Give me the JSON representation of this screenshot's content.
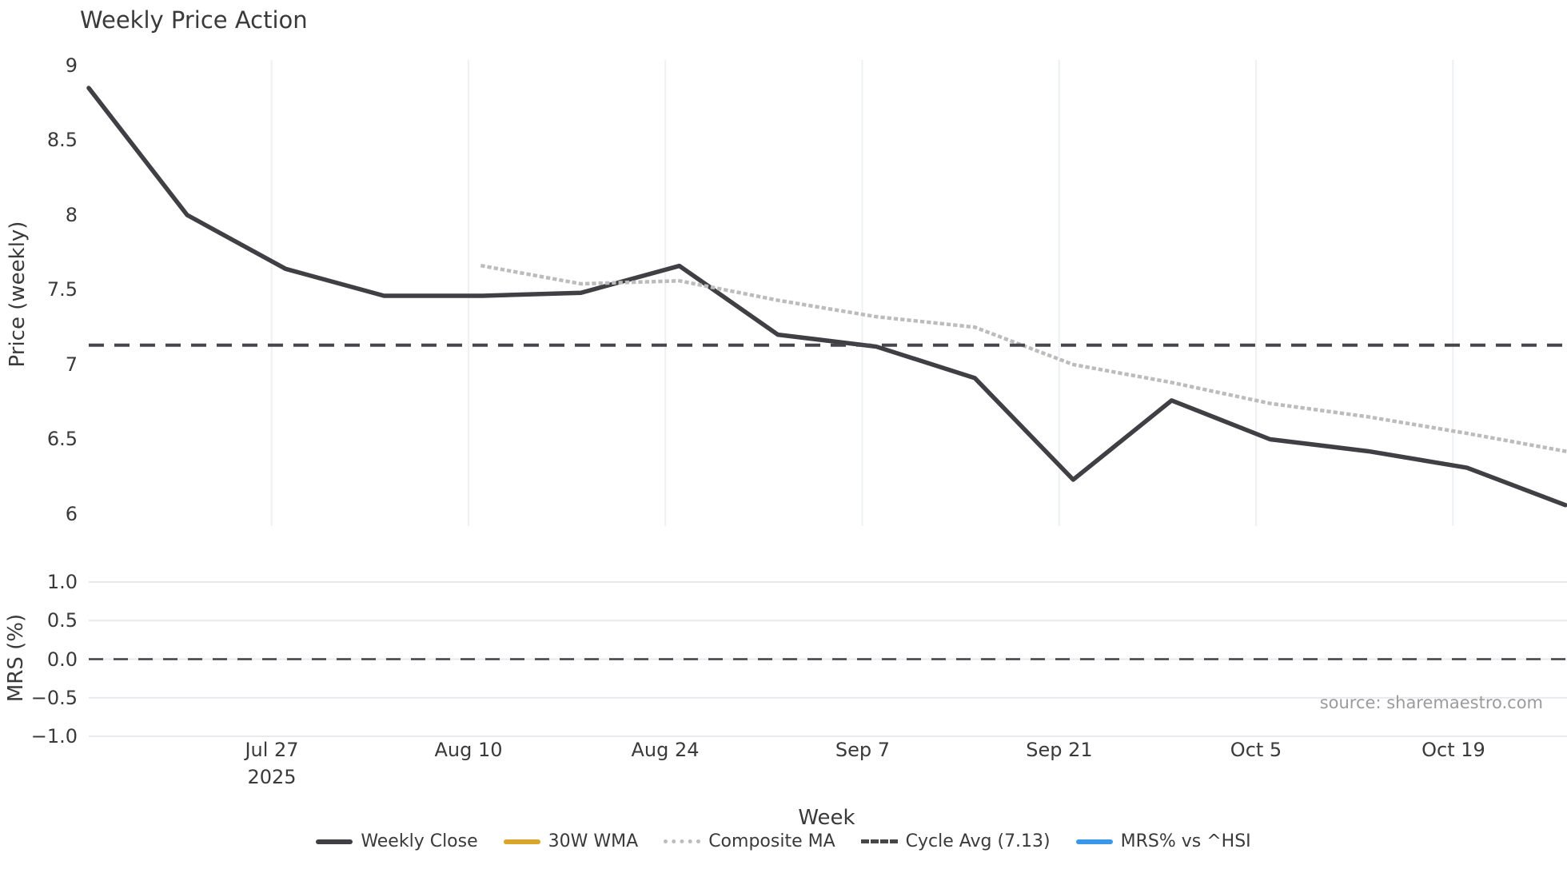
{
  "title": "Weekly Price Action",
  "source_note": "source: sharemaestro.com",
  "chart_data": {
    "type": "line",
    "title": "Weekly Price Action",
    "xlabel": "Week",
    "x_year_label": "2025",
    "x_ticks": [
      "Jul 27",
      "Aug 10",
      "Aug 24",
      "Sep 7",
      "Sep 21",
      "Oct 5",
      "Oct 19"
    ],
    "weeks": [
      "Jul 14",
      "Jul 21",
      "Jul 28",
      "Aug 4",
      "Aug 11",
      "Aug 18",
      "Aug 25",
      "Sep 1",
      "Sep 8",
      "Sep 15",
      "Sep 22",
      "Sep 29",
      "Oct 6",
      "Oct 13",
      "Oct 20",
      "Oct 27"
    ],
    "colors": {
      "weekly_close": "#3f3f44",
      "wma_30w": "#d9a62b",
      "composite_ma": "#bcbcbc",
      "cycle_avg": "#46464b",
      "mrs": "#3b97e8",
      "grid_vertical": "#eef0f3",
      "grid_horizontal": "#e7e9ec",
      "background": "#ffffff"
    },
    "price_panel": {
      "ylabel": "Price (weekly)",
      "ytick_labels": [
        "9",
        "8.5",
        "8",
        "7.5",
        "7",
        "6.5",
        "6"
      ],
      "ytick_values": [
        9,
        8.5,
        8,
        7.5,
        7,
        6.5,
        6
      ],
      "ylim": [
        5.95,
        9.05
      ],
      "grid": "vertical-date-gridlines-only",
      "series": [
        {
          "name": "Weekly Close",
          "type": "line",
          "style": "solid",
          "color": "#3f3f44",
          "values": [
            8.85,
            8.0,
            7.64,
            7.46,
            7.46,
            7.48,
            7.66,
            7.2,
            7.12,
            6.91,
            6.23,
            6.76,
            6.5,
            6.42,
            6.31,
            6.06
          ]
        },
        {
          "name": "30W WMA",
          "type": "line",
          "style": "solid",
          "color": "#d9a62b",
          "values": []
        },
        {
          "name": "Composite MA",
          "type": "line",
          "style": "dotted",
          "color": "#bcbcbc",
          "values": [
            null,
            null,
            null,
            null,
            7.66,
            7.54,
            7.56,
            7.43,
            7.32,
            7.25,
            7.0,
            6.88,
            6.74,
            6.65,
            6.54,
            6.42
          ]
        },
        {
          "name": "Cycle Avg (7.13)",
          "type": "hline",
          "style": "dashed",
          "color": "#46464b",
          "value": 7.13
        }
      ]
    },
    "mrs_panel": {
      "ylabel": "MRS (%)",
      "ytick_labels": [
        "1.0",
        "0.5",
        "0.0",
        "−0.5",
        "−1.0"
      ],
      "ytick_values": [
        1.0,
        0.5,
        0.0,
        -0.5,
        -1.0
      ],
      "ylim": [
        -1.15,
        1.15
      ],
      "grid": "horizontal-gridlines-only",
      "series": [
        {
          "name": "MRS% vs ^HSI",
          "type": "line",
          "style": "solid",
          "color": "#3b97e8",
          "values": []
        },
        {
          "name": "zero-line",
          "type": "hline",
          "style": "dashed",
          "color": "#3f3f44",
          "value": 0.0
        }
      ]
    },
    "legend": [
      {
        "label": "Weekly Close",
        "color": "#3f3f44",
        "style": "solid"
      },
      {
        "label": "30W WMA",
        "color": "#d9a62b",
        "style": "solid"
      },
      {
        "label": "Composite MA",
        "color": "#bcbcbc",
        "style": "dotted"
      },
      {
        "label": "Cycle Avg (7.13)",
        "color": "#46464b",
        "style": "dashed"
      },
      {
        "label": "MRS% vs ^HSI",
        "color": "#3b97e8",
        "style": "solid"
      }
    ],
    "legend_position": "bottom-center"
  }
}
